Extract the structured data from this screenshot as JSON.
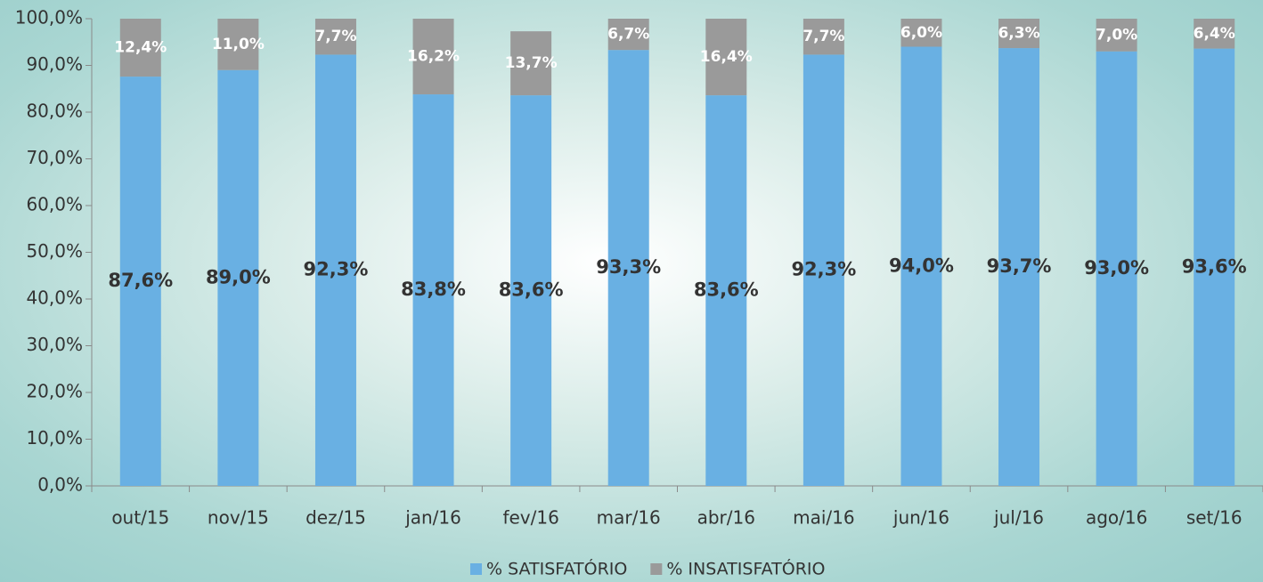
{
  "chart_data": {
    "type": "stacked_bar",
    "categories": [
      "out/15",
      "nov/15",
      "dez/15",
      "jan/16",
      "fev/16",
      "mar/16",
      "abr/16",
      "mai/16",
      "jun/16",
      "jul/16",
      "ago/16",
      "set/16"
    ],
    "series": [
      {
        "name": "% SATISFATÓRIO",
        "color": "#69b0e3",
        "values": [
          87.6,
          89.0,
          92.3,
          83.8,
          83.6,
          93.3,
          83.6,
          92.3,
          94.0,
          93.7,
          93.0,
          93.6
        ],
        "value_labels": [
          "87,6%",
          "89,0%",
          "92,3%",
          "83,8%",
          "83,6%",
          "93,3%",
          "83,6%",
          "92,3%",
          "94,0%",
          "93,7%",
          "93,0%",
          "93,6%"
        ]
      },
      {
        "name": "% INSATISFATÓRIO",
        "color": "#9a9a9a",
        "values": [
          12.4,
          11.0,
          7.7,
          16.2,
          13.7,
          6.7,
          16.4,
          7.7,
          6.0,
          6.3,
          7.0,
          6.4
        ],
        "value_labels": [
          "12,4%",
          "11,0%",
          "7,7%",
          "16,2%",
          "13,7%",
          "6,7%",
          "16,4%",
          "7,7%",
          "6,0%",
          "6,3%",
          "7,0%",
          "6,4%"
        ]
      }
    ],
    "ylim": [
      0,
      100
    ],
    "yticks": [
      {
        "value": 0,
        "label": "0,0%"
      },
      {
        "value": 10,
        "label": "10,0%"
      },
      {
        "value": 20,
        "label": "20,0%"
      },
      {
        "value": 30,
        "label": "30,0%"
      },
      {
        "value": 40,
        "label": "40,0%"
      },
      {
        "value": 50,
        "label": "50,0%"
      },
      {
        "value": 60,
        "label": "60,0%"
      },
      {
        "value": 70,
        "label": "70,0%"
      },
      {
        "value": 80,
        "label": "80,0%"
      },
      {
        "value": 90,
        "label": "90,0%"
      },
      {
        "value": 100,
        "label": "100,0%"
      }
    ],
    "grid": false,
    "legend": "bottom"
  }
}
